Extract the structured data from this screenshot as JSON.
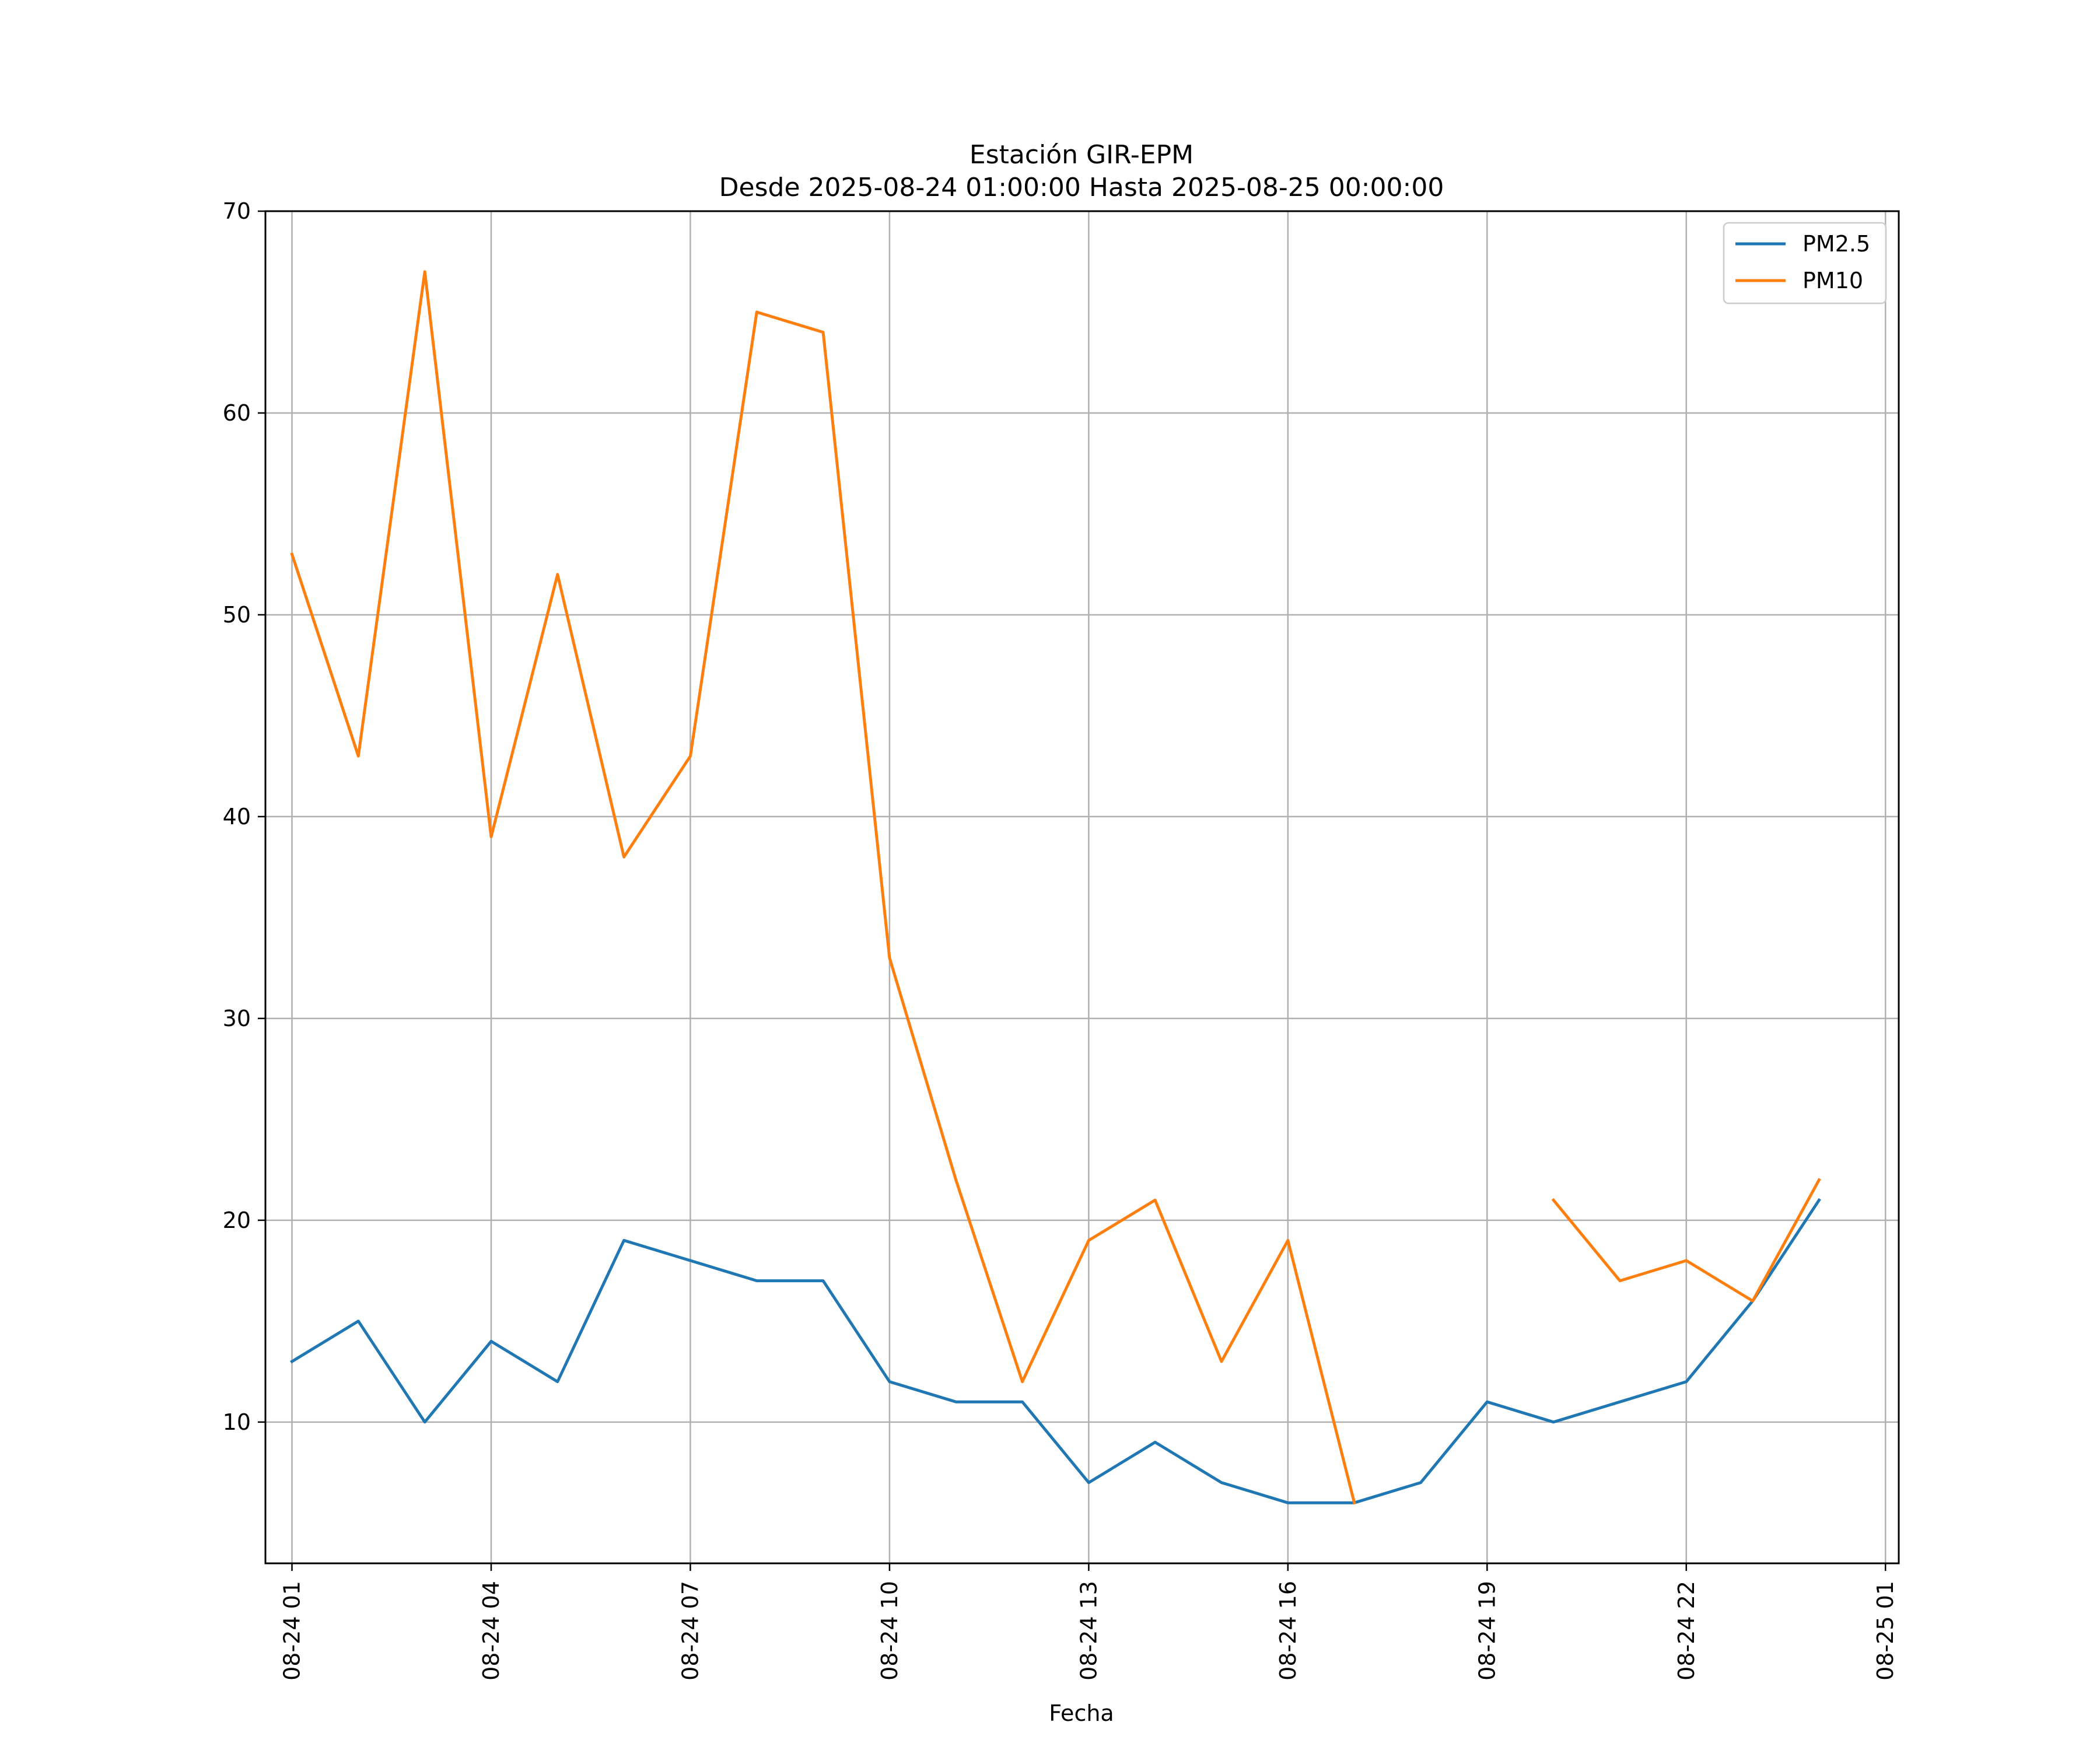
{
  "chart_data": {
    "type": "line",
    "title_line1": "Estación GIR-EPM",
    "title_line2": "Desde 2025-08-24 01:00:00 Hasta 2025-08-25 00:00:00",
    "xlabel": "Fecha",
    "ylabel": "",
    "ylim": [
      3,
      70
    ],
    "yticks": [
      10,
      20,
      30,
      40,
      50,
      60,
      70
    ],
    "xlim_hours": [
      -0.4,
      24.2
    ],
    "x_hours": [
      0,
      1,
      2,
      3,
      4,
      5,
      6,
      7,
      8,
      9,
      10,
      11,
      12,
      13,
      14,
      15,
      16,
      17,
      18,
      19,
      20,
      21,
      22,
      23
    ],
    "xticks": [
      {
        "hour": 0,
        "label": "08-24 01"
      },
      {
        "hour": 3,
        "label": "08-24 04"
      },
      {
        "hour": 6,
        "label": "08-24 07"
      },
      {
        "hour": 9,
        "label": "08-24 10"
      },
      {
        "hour": 12,
        "label": "08-24 13"
      },
      {
        "hour": 15,
        "label": "08-24 16"
      },
      {
        "hour": 18,
        "label": "08-24 19"
      },
      {
        "hour": 21,
        "label": "08-24 22"
      },
      {
        "hour": 24,
        "label": "08-25 01"
      }
    ],
    "grid": true,
    "legend_position": "top-right",
    "series": [
      {
        "name": "PM2.5",
        "color": "#1f77b4",
        "values": [
          13,
          15,
          10,
          14,
          12,
          19,
          18,
          17,
          17,
          12,
          11,
          11,
          7,
          9,
          7,
          6,
          6,
          7,
          11,
          10,
          11,
          12,
          16,
          21
        ]
      },
      {
        "name": "PM10",
        "color": "#ff7f0e",
        "values": [
          53,
          43,
          67,
          39,
          52,
          38,
          43,
          65,
          64,
          33,
          22,
          12,
          19,
          21,
          13,
          19,
          6,
          null,
          null,
          21,
          17,
          18,
          16,
          22
        ]
      }
    ]
  }
}
